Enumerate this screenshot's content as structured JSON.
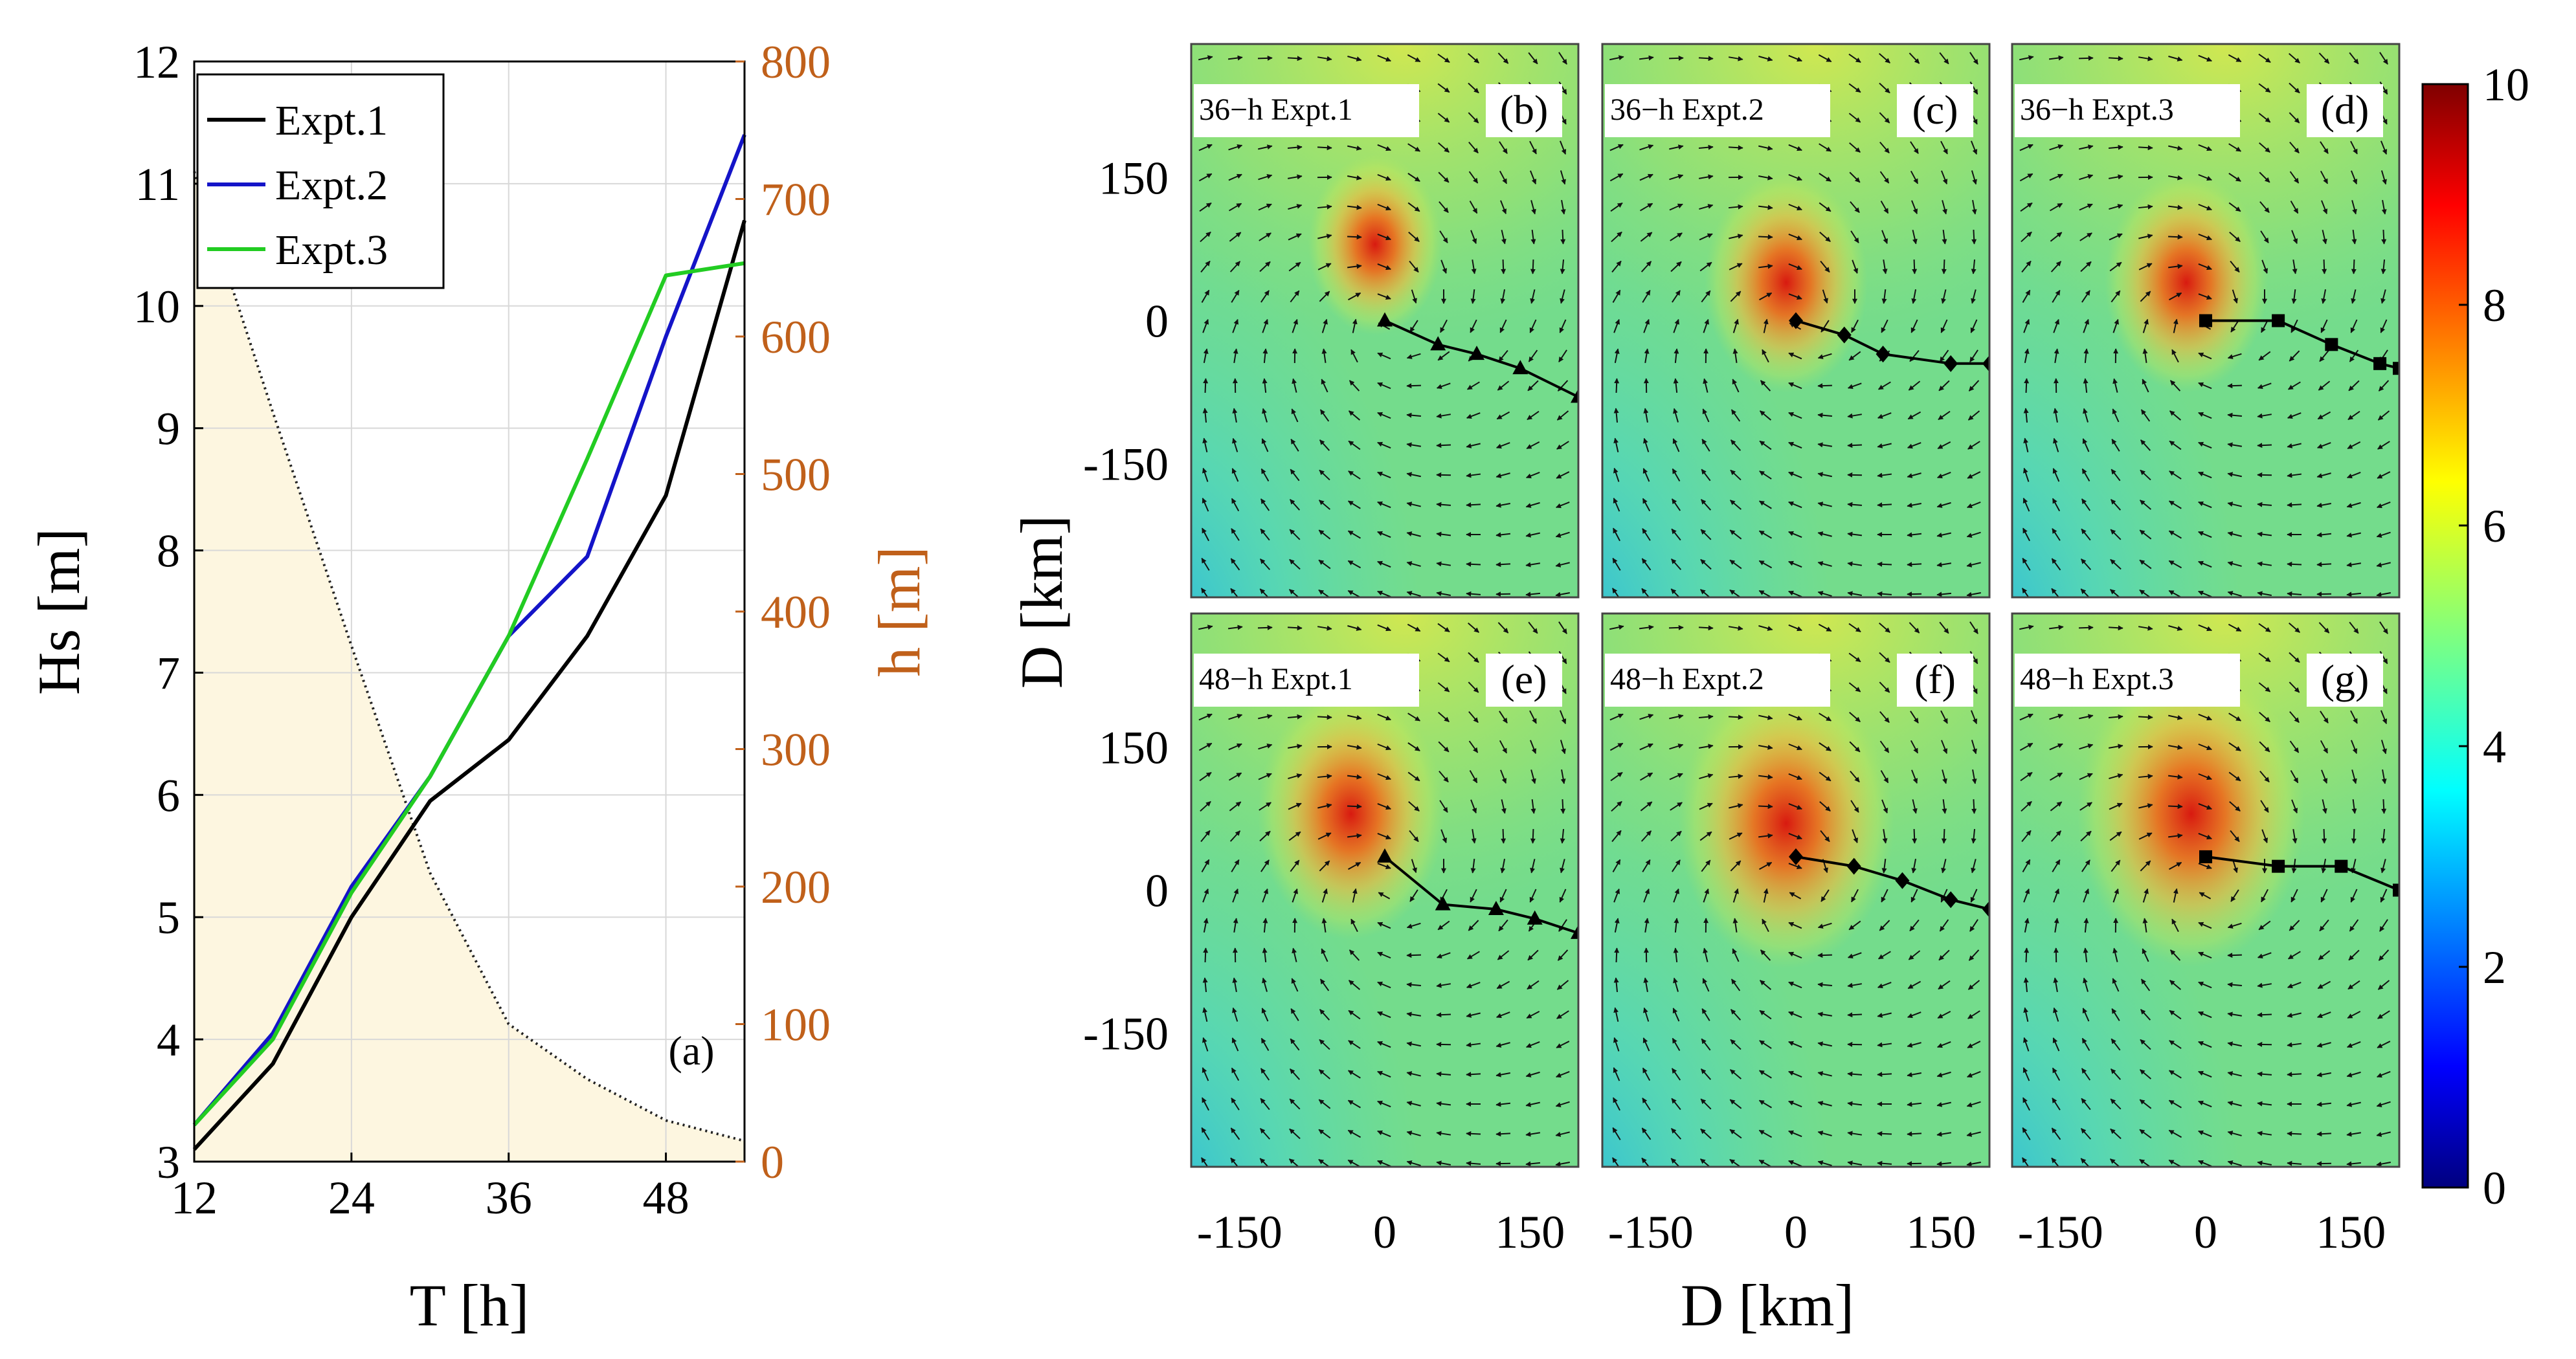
{
  "chart_data": [
    {
      "type": "line",
      "panel_label": "(a)",
      "xlabel": "T [h]",
      "ylabel": "Hs [m]",
      "ylabel_right": "h [m]",
      "xlim": [
        12,
        54
      ],
      "ylim": [
        3,
        12
      ],
      "ylim_right": [
        0,
        800
      ],
      "xticks": [
        12,
        24,
        36,
        48
      ],
      "yticks": [
        3,
        4,
        5,
        6,
        7,
        8,
        9,
        10,
        11,
        12
      ],
      "yticks_right": [
        0,
        100,
        200,
        300,
        400,
        500,
        600,
        700,
        800
      ],
      "grid": true,
      "legend": "top-left",
      "series": [
        {
          "name": "Expt.1",
          "axis": "left",
          "color": "#000000",
          "x": [
            12,
            18,
            24,
            30,
            36,
            42,
            48,
            54
          ],
          "y": [
            3.1,
            3.8,
            5.0,
            5.95,
            6.45,
            7.3,
            8.45,
            10.7
          ]
        },
        {
          "name": "Expt.2",
          "axis": "left",
          "color": "#1414c8",
          "x": [
            12,
            18,
            24,
            30,
            36,
            42,
            48,
            54
          ],
          "y": [
            3.3,
            4.05,
            5.25,
            6.15,
            7.3,
            7.95,
            9.75,
            11.4
          ]
        },
        {
          "name": "Expt.3",
          "axis": "left",
          "color": "#22cc22",
          "x": [
            12,
            18,
            24,
            30,
            36,
            42,
            48,
            54
          ],
          "y": [
            3.3,
            4.0,
            5.2,
            6.15,
            7.3,
            8.75,
            10.25,
            10.35
          ]
        }
      ],
      "depth": {
        "axis": "right",
        "color": "#fdf6e0",
        "x": [
          12,
          18,
          24,
          30,
          36,
          42,
          48,
          54
        ],
        "y": [
          720,
          545,
          375,
          210,
          100,
          60,
          30,
          15
        ]
      }
    },
    {
      "type": "heatmap",
      "xlabel": "D [km]",
      "ylabel": "D [km]",
      "xticks": [
        -150,
        0,
        150
      ],
      "yticks": [
        150,
        0,
        -150
      ],
      "xlim": [
        -200,
        200
      ],
      "ylim": [
        -290,
        290
      ],
      "colorbar": {
        "min": 0,
        "max": 10,
        "ticks": [
          0,
          2,
          4,
          6,
          8,
          10
        ]
      },
      "panels": [
        {
          "label": "(b)",
          "title": "36−h Expt.1",
          "marker": "triangle",
          "center": [
            -10,
            80
          ],
          "intensity": 7.3,
          "track_x": [
            0,
            55,
            95,
            140,
            200
          ],
          "track_y": [
            0,
            -25,
            -35,
            -50,
            -80
          ]
        },
        {
          "label": "(c)",
          "title": "36−h Expt.2",
          "marker": "diamond",
          "center": [
            -10,
            40
          ],
          "intensity": 7.8,
          "track_x": [
            0,
            50,
            90,
            160,
            200
          ],
          "track_y": [
            0,
            -15,
            -35,
            -45,
            -45
          ]
        },
        {
          "label": "(d)",
          "title": "36−h Expt.3",
          "marker": "square",
          "center": [
            -20,
            40
          ],
          "intensity": 7.8,
          "track_x": [
            0,
            75,
            130,
            180,
            200
          ],
          "track_y": [
            0,
            0,
            -25,
            -45,
            -50
          ]
        },
        {
          "label": "(e)",
          "title": "48−h Expt.1",
          "marker": "triangle",
          "center": [
            -35,
            80
          ],
          "intensity": 8.2,
          "track_x": [
            0,
            60,
            115,
            155,
            200
          ],
          "track_y": [
            35,
            -15,
            -20,
            -30,
            -45
          ]
        },
        {
          "label": "(f)",
          "title": "48−h Expt.2",
          "marker": "diamond",
          "center": [
            -10,
            70
          ],
          "intensity": 8.7,
          "track_x": [
            0,
            60,
            110,
            160,
            200
          ],
          "track_y": [
            35,
            25,
            10,
            -10,
            -20
          ]
        },
        {
          "label": "(g)",
          "title": "48−h Expt.3",
          "marker": "square",
          "center": [
            -15,
            80
          ],
          "intensity": 8.9,
          "track_x": [
            0,
            75,
            140,
            200
          ],
          "track_y": [
            35,
            25,
            25,
            0
          ]
        }
      ]
    }
  ]
}
